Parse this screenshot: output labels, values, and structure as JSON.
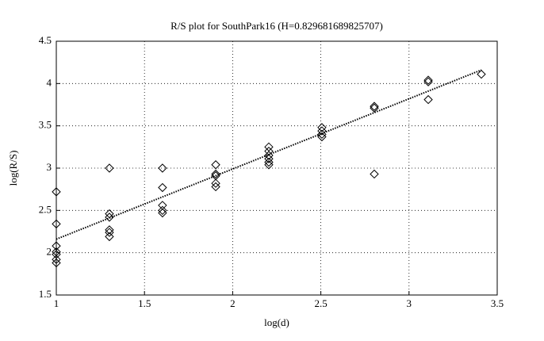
{
  "chart_data": {
    "type": "scatter",
    "title": "R/S plot for SouthPark16 (H=0.829681689825707)",
    "x_label": "log(d)",
    "y_label": "log(R/S)",
    "xlim": [
      1,
      3.5
    ],
    "xticks": [
      1,
      1.5,
      2,
      2.5,
      3,
      3.5
    ],
    "ylim": [
      1.5,
      4.5
    ],
    "yticks": [
      1.5,
      2,
      2.5,
      3,
      3.5,
      4,
      4.5
    ],
    "grid": true,
    "series": [
      {
        "type": "scatter",
        "marker": "diamond",
        "color": "#000000",
        "x": [
          1,
          1,
          1,
          1,
          1,
          1,
          1,
          1.301,
          1.301,
          1.301,
          1.301,
          1.301,
          1.301,
          1.602,
          1.602,
          1.602,
          1.602,
          1.602,
          1.904,
          1.904,
          1.904,
          1.904,
          1.904,
          2.205,
          2.205,
          2.205,
          2.205,
          2.205,
          2.205,
          2.506,
          2.506,
          2.506,
          2.506,
          2.803,
          2.803,
          2.803,
          3.109,
          3.109,
          3.109,
          3.41
        ],
        "values": [
          2.72,
          2.34,
          2.08,
          2.01,
          1.98,
          1.92,
          1.88,
          3.0,
          2.46,
          2.42,
          2.27,
          2.24,
          2.19,
          3.0,
          2.77,
          2.56,
          2.5,
          2.47,
          3.04,
          2.93,
          2.91,
          2.82,
          2.78,
          3.25,
          3.2,
          3.15,
          3.11,
          3.07,
          3.04,
          3.48,
          3.44,
          3.4,
          3.37,
          3.73,
          3.71,
          2.93,
          4.04,
          4.02,
          3.81,
          4.11
        ]
      },
      {
        "type": "line",
        "style": "dotted",
        "color": "#000000",
        "x": [
          1,
          3.41
        ],
        "values": [
          2.16,
          4.16
        ]
      }
    ]
  }
}
